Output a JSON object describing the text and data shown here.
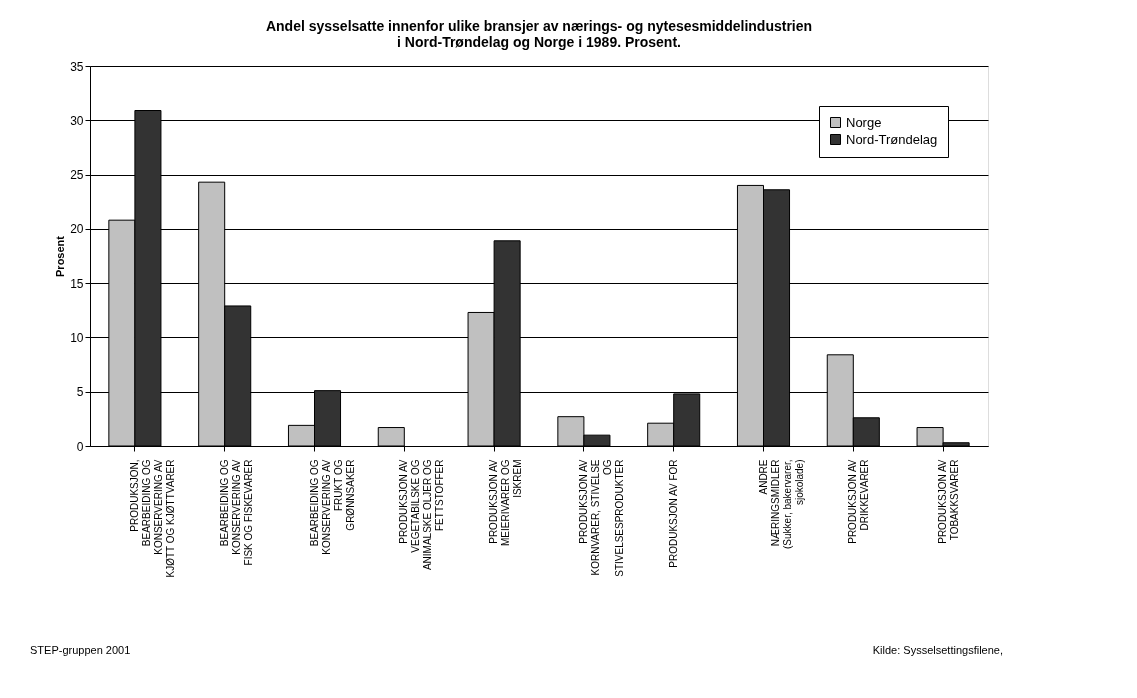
{
  "chart_data": {
    "type": "bar",
    "title": "Andel sysselsatte innenfor ulike bransjer av nærings- og nytesesmiddelindustrien\ni Nord-Trøndelag og Norge i 1989. Prosent.",
    "ylabel": "Prosent",
    "categories": [
      "PRODUKSJON,\nBEARBEIDING OG\nKONSERVERING AV\nKJØTT OG KJØTTVARER",
      "BEARBEIDING OG\nKONSERVERING AV\nFISK OG FISKEVARER",
      "BEARBEIDING OG\nKONSERVERING AV\nFRUKT OG\nGRØNNSAKER",
      "PRODUKSJON AV\nVEGETABILSKE OG\nANIMALSKE OLJER OG\nFETTSTOFFER",
      "PRODUKSJON AV\nMEIERIVARER OG\nISKREM",
      "PRODUKSJON AV\nKORNVARER, STIVELSE\nOG\nSTIVELSESPRODUKTER",
      "PRODUKSJON AV FOR",
      "ANDRE\nNÆRINGSMIDLER\n(Sukker, bakervarer,\nsjokolade)",
      "PRODUKSJON AV\nDRIKKEVARER",
      "PRODUKSJON AV\nTOBAKKSVARER"
    ],
    "series": [
      {
        "name": "Norge",
        "color": "#c0c0c0",
        "values": [
          20.8,
          24.3,
          1.9,
          1.7,
          12.3,
          2.7,
          2.1,
          24.0,
          8.4,
          1.7
        ]
      },
      {
        "name": "Nord-Trøndelag",
        "color": "#333333",
        "values": [
          30.9,
          12.9,
          5.1,
          null,
          18.9,
          1.0,
          4.8,
          23.6,
          2.6,
          0.3
        ]
      }
    ],
    "ylim": [
      0,
      35
    ],
    "yticks": [
      0,
      5,
      10,
      15,
      20,
      25,
      30,
      35
    ],
    "grid": "y",
    "legend": "top right",
    "annotations": [
      "STEP-gruppen 2001",
      "Kilde: Sysselsettingsfilene,"
    ]
  }
}
